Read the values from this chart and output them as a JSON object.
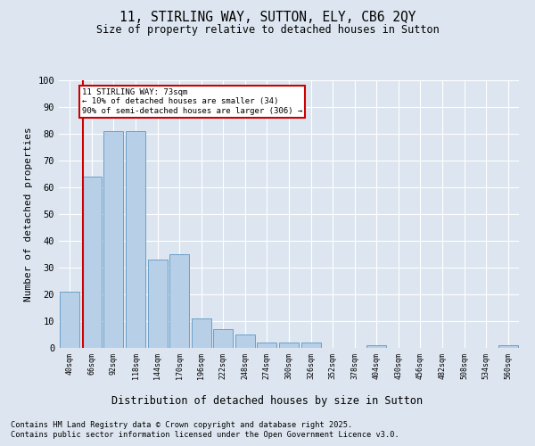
{
  "title1": "11, STIRLING WAY, SUTTON, ELY, CB6 2QY",
  "title2": "Size of property relative to detached houses in Sutton",
  "xlabel": "Distribution of detached houses by size in Sutton",
  "ylabel": "Number of detached properties",
  "categories": [
    "40sqm",
    "66sqm",
    "92sqm",
    "118sqm",
    "144sqm",
    "170sqm",
    "196sqm",
    "222sqm",
    "248sqm",
    "274sqm",
    "300sqm",
    "326sqm",
    "352sqm",
    "378sqm",
    "404sqm",
    "430sqm",
    "456sqm",
    "482sqm",
    "508sqm",
    "534sqm",
    "560sqm"
  ],
  "values": [
    21,
    64,
    81,
    81,
    33,
    35,
    11,
    7,
    5,
    2,
    2,
    2,
    0,
    0,
    1,
    0,
    0,
    0,
    0,
    0,
    1
  ],
  "bar_color": "#b8cfe8",
  "bar_edgecolor": "#6aa0c8",
  "vline_color": "#cc0000",
  "vline_x_index": 1,
  "annotation_text": "11 STIRLING WAY: 73sqm\n← 10% of detached houses are smaller (34)\n90% of semi-detached houses are larger (306) →",
  "annotation_box_facecolor": "#ffffff",
  "annotation_box_edgecolor": "#cc0000",
  "ylim": [
    0,
    100
  ],
  "yticks": [
    0,
    10,
    20,
    30,
    40,
    50,
    60,
    70,
    80,
    90,
    100
  ],
  "background_color": "#dde6f0",
  "grid_color": "#ffffff",
  "footer1": "Contains HM Land Registry data © Crown copyright and database right 2025.",
  "footer2": "Contains public sector information licensed under the Open Government Licence v3.0."
}
